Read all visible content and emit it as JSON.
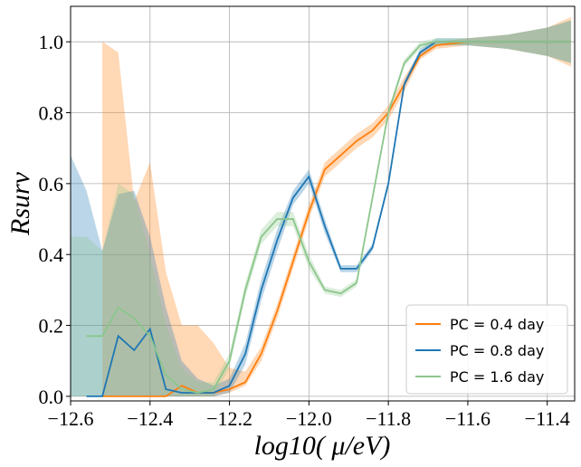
{
  "chart_data": {
    "type": "line",
    "xlabel": "log10( μ/eV)",
    "ylabel": "Rsurv",
    "x": [
      -12.6,
      -12.56,
      -12.52,
      -12.48,
      -12.44,
      -12.4,
      -12.36,
      -12.32,
      -12.28,
      -12.24,
      -12.2,
      -12.16,
      -12.12,
      -12.08,
      -12.04,
      -12.0,
      -11.96,
      -11.92,
      -11.88,
      -11.84,
      -11.8,
      -11.76,
      -11.72,
      -11.68,
      -11.6,
      -11.5,
      -11.4,
      -11.34
    ],
    "series": [
      {
        "name": "PC = 0.4 day",
        "color": "#ff7f0e",
        "values": [
          null,
          null,
          0,
          0,
          0,
          0,
          0,
          0.03,
          0.01,
          0.01,
          0.02,
          0.04,
          0.12,
          0.24,
          0.38,
          0.52,
          0.64,
          0.68,
          0.72,
          0.75,
          0.8,
          0.88,
          0.96,
          0.99,
          1.0,
          1.0,
          1.0,
          1.0
        ],
        "lower": [
          null,
          null,
          0,
          0,
          0,
          0,
          0,
          0,
          0,
          0,
          0.01,
          0.03,
          0.1,
          0.22,
          0.36,
          0.5,
          0.62,
          0.66,
          0.7,
          0.73,
          0.78,
          0.86,
          0.95,
          0.98,
          0.99,
          0.98,
          0.96,
          0.93
        ],
        "upper": [
          null,
          null,
          1.0,
          0.97,
          0.55,
          0.66,
          0.35,
          0.2,
          0.2,
          0.15,
          0.08,
          0.07,
          0.14,
          0.26,
          0.4,
          0.54,
          0.66,
          0.7,
          0.74,
          0.77,
          0.82,
          0.9,
          0.97,
          1.0,
          1.01,
          1.02,
          1.04,
          1.07
        ]
      },
      {
        "name": "PC = 0.8 day",
        "color": "#1f77b4",
        "values": [
          null,
          0,
          0,
          0.17,
          0.13,
          0.19,
          0.02,
          0.01,
          0.01,
          0.01,
          0.03,
          0.12,
          0.3,
          0.44,
          0.56,
          0.62,
          0.48,
          0.36,
          0.36,
          0.42,
          0.6,
          0.88,
          0.97,
          1.0,
          1.0,
          1.0,
          1.0,
          1.0
        ],
        "lower": [
          0,
          0,
          0,
          0,
          0,
          0,
          0,
          0,
          0,
          0,
          0.01,
          0.09,
          0.27,
          0.41,
          0.54,
          0.6,
          0.46,
          0.35,
          0.35,
          0.41,
          0.59,
          0.87,
          0.96,
          0.99,
          0.99,
          0.98,
          0.96,
          0.94
        ],
        "upper": [
          0.68,
          0.58,
          0.41,
          0.57,
          0.58,
          0.45,
          0.25,
          0.1,
          0.05,
          0.03,
          0.05,
          0.15,
          0.33,
          0.47,
          0.58,
          0.64,
          0.5,
          0.37,
          0.37,
          0.43,
          0.61,
          0.89,
          0.98,
          1.01,
          1.01,
          1.02,
          1.04,
          1.06
        ]
      },
      {
        "name": "PC = 1.6 day",
        "color": "#8cc68c",
        "values": [
          null,
          0.17,
          0.17,
          0.25,
          0.22,
          0.17,
          0.06,
          0.02,
          0.01,
          0.02,
          0.1,
          0.3,
          0.45,
          0.5,
          0.5,
          0.38,
          0.3,
          0.29,
          0.32,
          0.56,
          0.8,
          0.94,
          0.99,
          1.0,
          1.0,
          1.0,
          1.0,
          1.0
        ],
        "lower": [
          0,
          0,
          0,
          0,
          0,
          0,
          0,
          0,
          0,
          0,
          0.08,
          0.28,
          0.43,
          0.48,
          0.48,
          0.36,
          0.29,
          0.28,
          0.31,
          0.55,
          0.79,
          0.93,
          0.98,
          0.99,
          0.99,
          0.98,
          0.96,
          0.94
        ],
        "upper": [
          0.45,
          0.45,
          0.41,
          0.6,
          0.57,
          0.4,
          0.2,
          0.08,
          0.04,
          0.04,
          0.12,
          0.32,
          0.47,
          0.52,
          0.52,
          0.4,
          0.31,
          0.3,
          0.33,
          0.57,
          0.81,
          0.95,
          1.0,
          1.01,
          1.01,
          1.02,
          1.04,
          1.06
        ]
      }
    ],
    "xlim": [
      -12.6,
      -11.331
    ],
    "ylim": [
      -0.013,
      1.1
    ],
    "xticks": [
      {
        "value": -12.6,
        "label": "−12.6"
      },
      {
        "value": -12.4,
        "label": "−12.4"
      },
      {
        "value": -12.2,
        "label": "−12.2"
      },
      {
        "value": -12.0,
        "label": "−12.0"
      },
      {
        "value": -11.8,
        "label": "−11.8"
      },
      {
        "value": -11.6,
        "label": "−11.6"
      },
      {
        "value": -11.4,
        "label": "−11.4"
      }
    ],
    "yticks": [
      {
        "value": 0,
        "label": "0.0"
      },
      0.2,
      0.4,
      0.6,
      0.8,
      {
        "value": 1,
        "label": "1.0"
      }
    ],
    "grid": true,
    "legend": "lower right"
  }
}
